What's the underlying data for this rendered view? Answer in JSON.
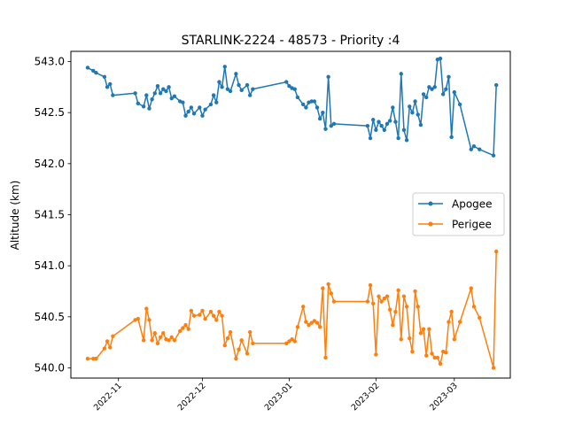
{
  "chart_data": {
    "type": "line",
    "title": "STARLINK-2224 - 48573 - Priority :4",
    "xlabel": "",
    "ylabel": "Altitude (km)",
    "x_type": "date",
    "xlim": [
      "2022-10-15",
      "2023-03-21"
    ],
    "ylim": [
      539.9,
      543.1
    ],
    "y_ticks": [
      540.0,
      540.5,
      541.0,
      541.5,
      542.0,
      542.5,
      543.0
    ],
    "y_tick_labels": [
      "540.0",
      "540.5",
      "541.0",
      "541.5",
      "542.0",
      "542.5",
      "543.0"
    ],
    "x_ticks": [
      "2022-11-01",
      "2022-12-01",
      "2023-01-01",
      "2023-02-01",
      "2023-03-01"
    ],
    "x_tick_labels": [
      "2022-11",
      "2022-12",
      "2023-01",
      "2023-02",
      "2023-03"
    ],
    "grid": false,
    "legend_position": "center-right",
    "series": [
      {
        "name": "Apogee",
        "color": "#1f77b4",
        "points": [
          [
            "2022-10-21",
            542.94
          ],
          [
            "2022-10-23",
            542.91
          ],
          [
            "2022-10-24",
            542.89
          ],
          [
            "2022-10-27",
            542.85
          ],
          [
            "2022-10-28",
            542.75
          ],
          [
            "2022-10-29",
            542.78
          ],
          [
            "2022-10-30",
            542.67
          ],
          [
            "2022-11-07",
            542.69
          ],
          [
            "2022-11-08",
            542.59
          ],
          [
            "2022-11-10",
            542.56
          ],
          [
            "2022-11-11",
            542.67
          ],
          [
            "2022-11-12",
            542.54
          ],
          [
            "2022-11-13",
            542.63
          ],
          [
            "2022-11-14",
            542.69
          ],
          [
            "2022-11-15",
            542.76
          ],
          [
            "2022-11-16",
            542.69
          ],
          [
            "2022-11-17",
            542.73
          ],
          [
            "2022-11-18",
            542.71
          ],
          [
            "2022-11-19",
            542.75
          ],
          [
            "2022-11-20",
            542.64
          ],
          [
            "2022-11-21",
            542.66
          ],
          [
            "2022-11-23",
            542.61
          ],
          [
            "2022-11-24",
            542.6
          ],
          [
            "2022-11-25",
            542.47
          ],
          [
            "2022-11-26",
            542.51
          ],
          [
            "2022-11-27",
            542.55
          ],
          [
            "2022-11-28",
            542.49
          ],
          [
            "2022-11-30",
            542.55
          ],
          [
            "2022-12-01",
            542.47
          ],
          [
            "2022-12-02",
            542.53
          ],
          [
            "2022-12-04",
            542.58
          ],
          [
            "2022-12-05",
            542.67
          ],
          [
            "2022-12-06",
            542.6
          ],
          [
            "2022-12-07",
            542.8
          ],
          [
            "2022-12-08",
            542.75
          ],
          [
            "2022-12-09",
            542.95
          ],
          [
            "2022-12-10",
            542.73
          ],
          [
            "2022-12-11",
            542.71
          ],
          [
            "2022-12-13",
            542.88
          ],
          [
            "2022-12-14",
            542.77
          ],
          [
            "2022-12-15",
            542.72
          ],
          [
            "2022-12-17",
            542.77
          ],
          [
            "2022-12-18",
            542.67
          ],
          [
            "2022-12-19",
            542.73
          ],
          [
            "2022-12-31",
            542.8
          ],
          [
            "2023-01-01",
            542.76
          ],
          [
            "2023-01-02",
            542.74
          ],
          [
            "2023-01-03",
            542.73
          ],
          [
            "2023-01-04",
            542.65
          ],
          [
            "2023-01-06",
            542.58
          ],
          [
            "2023-01-07",
            542.55
          ],
          [
            "2023-01-08",
            542.6
          ],
          [
            "2023-01-09",
            542.61
          ],
          [
            "2023-01-10",
            542.61
          ],
          [
            "2023-01-11",
            542.55
          ],
          [
            "2023-01-12",
            542.44
          ],
          [
            "2023-01-13",
            542.5
          ],
          [
            "2023-01-14",
            542.34
          ],
          [
            "2023-01-15",
            542.85
          ],
          [
            "2023-01-16",
            542.37
          ],
          [
            "2023-01-17",
            542.39
          ],
          [
            "2023-01-29",
            542.37
          ],
          [
            "2023-01-30",
            542.25
          ],
          [
            "2023-01-31",
            542.43
          ],
          [
            "2023-02-01",
            542.33
          ],
          [
            "2023-02-02",
            542.41
          ],
          [
            "2023-02-03",
            542.37
          ],
          [
            "2023-02-04",
            542.33
          ],
          [
            "2023-02-05",
            542.39
          ],
          [
            "2023-02-06",
            542.42
          ],
          [
            "2023-02-07",
            542.55
          ],
          [
            "2023-02-08",
            542.41
          ],
          [
            "2023-02-09",
            542.25
          ],
          [
            "2023-02-10",
            542.88
          ],
          [
            "2023-02-11",
            542.33
          ],
          [
            "2023-02-12",
            542.23
          ],
          [
            "2023-02-13",
            542.56
          ],
          [
            "2023-02-14",
            542.5
          ],
          [
            "2023-02-15",
            542.61
          ],
          [
            "2023-02-16",
            542.48
          ],
          [
            "2023-02-17",
            542.38
          ],
          [
            "2023-02-18",
            542.68
          ],
          [
            "2023-02-19",
            542.65
          ],
          [
            "2023-02-20",
            542.75
          ],
          [
            "2023-02-21",
            542.73
          ],
          [
            "2023-02-22",
            542.75
          ],
          [
            "2023-02-23",
            543.02
          ],
          [
            "2023-02-24",
            543.03
          ],
          [
            "2023-02-25",
            542.68
          ],
          [
            "2023-02-26",
            542.73
          ],
          [
            "2023-02-27",
            542.85
          ],
          [
            "2023-02-28",
            542.26
          ],
          [
            "2023-03-01",
            542.7
          ],
          [
            "2023-03-03",
            542.58
          ],
          [
            "2023-03-07",
            542.14
          ],
          [
            "2023-03-08",
            542.17
          ],
          [
            "2023-03-10",
            542.14
          ],
          [
            "2023-03-15",
            542.08
          ],
          [
            "2023-03-16",
            542.77
          ]
        ]
      },
      {
        "name": "Perigee",
        "color": "#ff7f0e",
        "points": [
          [
            "2022-10-21",
            540.09
          ],
          [
            "2022-10-23",
            540.09
          ],
          [
            "2022-10-24",
            540.09
          ],
          [
            "2022-10-27",
            540.19
          ],
          [
            "2022-10-28",
            540.26
          ],
          [
            "2022-10-29",
            540.2
          ],
          [
            "2022-10-30",
            540.31
          ],
          [
            "2022-11-07",
            540.47
          ],
          [
            "2022-11-08",
            540.48
          ],
          [
            "2022-11-10",
            540.27
          ],
          [
            "2022-11-11",
            540.58
          ],
          [
            "2022-11-12",
            540.47
          ],
          [
            "2022-11-13",
            540.27
          ],
          [
            "2022-11-14",
            540.34
          ],
          [
            "2022-11-15",
            540.24
          ],
          [
            "2022-11-16",
            540.3
          ],
          [
            "2022-11-17",
            540.34
          ],
          [
            "2022-11-18",
            540.28
          ],
          [
            "2022-11-19",
            540.27
          ],
          [
            "2022-11-20",
            540.3
          ],
          [
            "2022-11-21",
            540.27
          ],
          [
            "2022-11-23",
            540.36
          ],
          [
            "2022-11-24",
            540.39
          ],
          [
            "2022-11-25",
            540.42
          ],
          [
            "2022-11-26",
            540.38
          ],
          [
            "2022-11-27",
            540.56
          ],
          [
            "2022-11-28",
            540.51
          ],
          [
            "2022-11-30",
            540.52
          ],
          [
            "2022-12-01",
            540.56
          ],
          [
            "2022-12-02",
            540.48
          ],
          [
            "2022-12-04",
            540.55
          ],
          [
            "2022-12-05",
            540.51
          ],
          [
            "2022-12-06",
            540.47
          ],
          [
            "2022-12-07",
            540.55
          ],
          [
            "2022-12-08",
            540.51
          ],
          [
            "2022-12-09",
            540.22
          ],
          [
            "2022-12-10",
            540.29
          ],
          [
            "2022-12-11",
            540.35
          ],
          [
            "2022-12-13",
            540.09
          ],
          [
            "2022-12-14",
            540.18
          ],
          [
            "2022-12-15",
            540.27
          ],
          [
            "2022-12-17",
            540.14
          ],
          [
            "2022-12-18",
            540.35
          ],
          [
            "2022-12-19",
            540.24
          ],
          [
            "2022-12-31",
            540.24
          ],
          [
            "2023-01-01",
            540.26
          ],
          [
            "2023-01-02",
            540.28
          ],
          [
            "2023-01-03",
            540.26
          ],
          [
            "2023-01-04",
            540.4
          ],
          [
            "2023-01-06",
            540.6
          ],
          [
            "2023-01-07",
            540.45
          ],
          [
            "2023-01-08",
            540.42
          ],
          [
            "2023-01-09",
            540.44
          ],
          [
            "2023-01-10",
            540.46
          ],
          [
            "2023-01-11",
            540.44
          ],
          [
            "2023-01-12",
            540.4
          ],
          [
            "2023-01-13",
            540.78
          ],
          [
            "2023-01-14",
            540.1
          ],
          [
            "2023-01-15",
            540.82
          ],
          [
            "2023-01-16",
            540.73
          ],
          [
            "2023-01-17",
            540.65
          ],
          [
            "2023-01-29",
            540.65
          ],
          [
            "2023-01-30",
            540.81
          ],
          [
            "2023-01-31",
            540.63
          ],
          [
            "2023-02-01",
            540.13
          ],
          [
            "2023-02-02",
            540.7
          ],
          [
            "2023-02-03",
            540.65
          ],
          [
            "2023-02-04",
            540.68
          ],
          [
            "2023-02-05",
            540.7
          ],
          [
            "2023-02-06",
            540.57
          ],
          [
            "2023-02-07",
            540.42
          ],
          [
            "2023-02-08",
            540.55
          ],
          [
            "2023-02-09",
            540.76
          ],
          [
            "2023-02-10",
            540.28
          ],
          [
            "2023-02-11",
            540.7
          ],
          [
            "2023-02-12",
            540.6
          ],
          [
            "2023-02-13",
            540.29
          ],
          [
            "2023-02-14",
            540.16
          ],
          [
            "2023-02-15",
            540.75
          ],
          [
            "2023-02-16",
            540.6
          ],
          [
            "2023-02-17",
            540.34
          ],
          [
            "2023-02-18",
            540.38
          ],
          [
            "2023-02-19",
            540.12
          ],
          [
            "2023-02-20",
            540.38
          ],
          [
            "2023-02-21",
            540.14
          ],
          [
            "2023-02-22",
            540.1
          ],
          [
            "2023-02-23",
            540.1
          ],
          [
            "2023-02-24",
            540.04
          ],
          [
            "2023-02-25",
            540.16
          ],
          [
            "2023-02-26",
            540.15
          ],
          [
            "2023-02-27",
            540.45
          ],
          [
            "2023-02-28",
            540.55
          ],
          [
            "2023-03-01",
            540.28
          ],
          [
            "2023-03-03",
            540.45
          ],
          [
            "2023-03-07",
            540.78
          ],
          [
            "2023-03-08",
            540.6
          ],
          [
            "2023-03-10",
            540.49
          ],
          [
            "2023-03-15",
            540.0
          ],
          [
            "2023-03-16",
            541.14
          ]
        ]
      }
    ]
  }
}
